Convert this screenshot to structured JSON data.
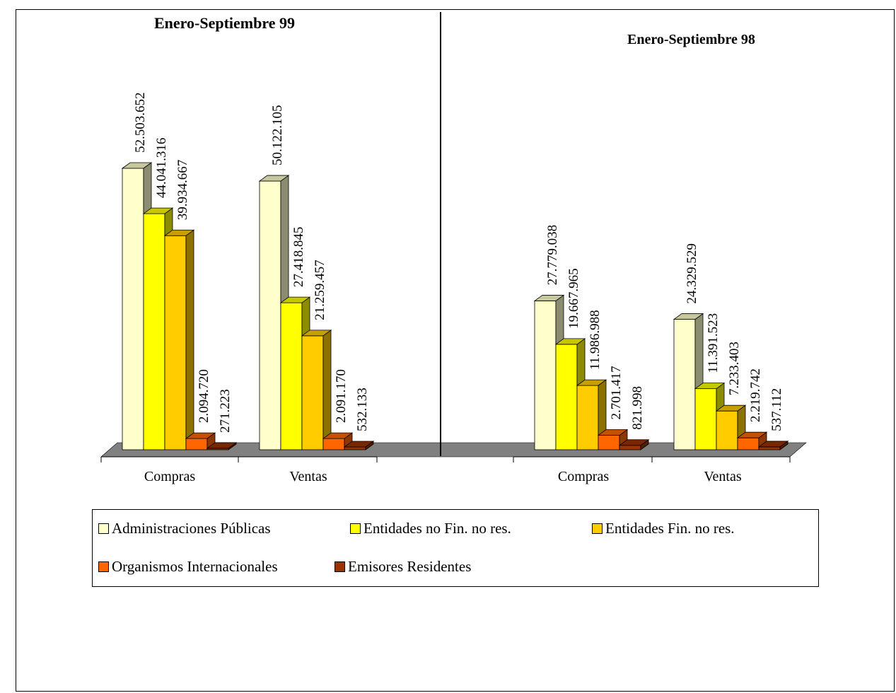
{
  "chart_data": [
    {
      "type": "bar",
      "title": "Enero-Septiembre 99",
      "categories": [
        "Compras",
        "Ventas"
      ],
      "series": [
        {
          "name": "Administraciones Públicas",
          "values": [
            52503652,
            50122105
          ]
        },
        {
          "name": "Entidades  no Fin. no res.",
          "values": [
            44041316,
            27418845
          ]
        },
        {
          "name": "Entidades Fin. no res.",
          "values": [
            39934667,
            21259457
          ]
        },
        {
          "name": "Organismos Internacionales",
          "values": [
            2094720,
            2091170
          ]
        },
        {
          "name": "Emisores Residentes",
          "values": [
            271223,
            532133
          ]
        }
      ],
      "labels": [
        [
          "52.503.652",
          "50.122.105"
        ],
        [
          "44.041.316",
          "27.418.845"
        ],
        [
          "39.934.667",
          "21.259.457"
        ],
        [
          "2.094.720",
          "2.091.170"
        ],
        [
          "271.223",
          "532.133"
        ]
      ],
      "ylim": [
        0,
        55000000
      ],
      "grid": false,
      "legend": "bottom"
    },
    {
      "type": "bar",
      "title": "Enero-Septiembre  98",
      "categories": [
        "Compras",
        "Ventas"
      ],
      "series": [
        {
          "name": "Administraciones Públicas",
          "values": [
            27779038,
            24329529
          ]
        },
        {
          "name": "Entidades  no Fin. no res.",
          "values": [
            19667965,
            11391523
          ]
        },
        {
          "name": "Entidades Fin. no res.",
          "values": [
            11986988,
            7233403
          ]
        },
        {
          "name": "Organismos Internacionales",
          "values": [
            2701417,
            2219742
          ]
        },
        {
          "name": "Emisores Residentes",
          "values": [
            821998,
            537112
          ]
        }
      ],
      "labels": [
        [
          "27.779.038",
          "24.329.529"
        ],
        [
          "19.667.965",
          "11.391.523"
        ],
        [
          "11.986.988",
          "7.233.403"
        ],
        [
          "2.701.417",
          "2.219.742"
        ],
        [
          "821.998",
          "537.112"
        ]
      ],
      "ylim": [
        0,
        55000000
      ],
      "grid": false,
      "legend": "bottom"
    }
  ],
  "colors": {
    "series": [
      "#FFFFCC",
      "#FFFF00",
      "#FFCC00",
      "#FF6600",
      "#993300"
    ],
    "floor": "#808080"
  }
}
